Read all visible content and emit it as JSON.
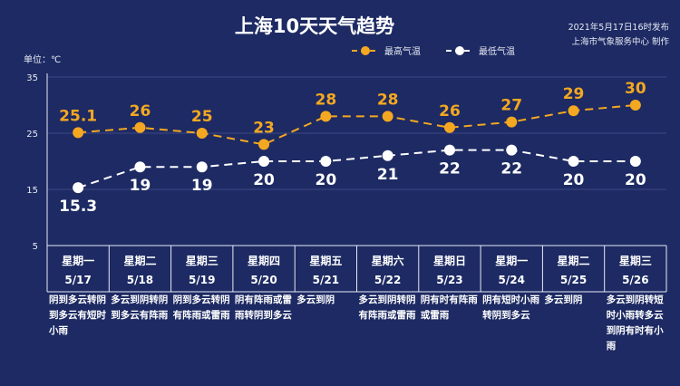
{
  "title": "上海10天天气趋势",
  "publish_time": "2021年5月17日16时发布",
  "publisher": "上海市气象服务中心 制作",
  "unit_label": "单位：℃",
  "colors": {
    "background": "#1d2a63",
    "high": "#f4a821",
    "low": "#ffffff"
  },
  "chart_data": {
    "type": "line",
    "title": "上海10天天气趋势",
    "ylim": [
      5,
      35
    ],
    "yticks": [
      "35",
      "25",
      "15",
      "5"
    ],
    "grid": true,
    "legend_position": "top-right",
    "categories": [
      "5/17",
      "5/18",
      "5/19",
      "5/20",
      "5/21",
      "5/22",
      "5/23",
      "5/24",
      "5/25",
      "5/26"
    ],
    "weekdays": [
      "星期一",
      "星期二",
      "星期三",
      "星期四",
      "星期五",
      "星期六",
      "星期日",
      "星期一",
      "星期二",
      "星期三"
    ],
    "descriptions": [
      "阴到多云转阴到多云有短时小雨",
      "多云到阴转阴到多云有阵雨",
      "阴到多云转阴有阵雨或雷雨",
      "阴有阵雨或雷雨转阴到多云",
      "多云到阴",
      "多云到阴转阴有阵雨或雷雨",
      "阴有时有阵雨或雷雨",
      "阴有短时小雨转阴到多云",
      "多云到阴",
      "多云到阴转短时小雨转多云到阴有时有小雨"
    ],
    "series": [
      {
        "name": "最高气温",
        "values": [
          25.1,
          26,
          25,
          23,
          28,
          28,
          26,
          27,
          29,
          30
        ],
        "labels": [
          "25.1",
          "26",
          "25",
          "23",
          "28",
          "28",
          "26",
          "27",
          "29",
          "30"
        ]
      },
      {
        "name": "最低气温",
        "values": [
          15.3,
          19,
          19,
          20,
          20,
          21,
          22,
          22,
          20,
          20
        ],
        "labels": [
          "15.3",
          "19",
          "19",
          "20",
          "20",
          "21",
          "22",
          "22",
          "20",
          "20"
        ]
      }
    ]
  }
}
